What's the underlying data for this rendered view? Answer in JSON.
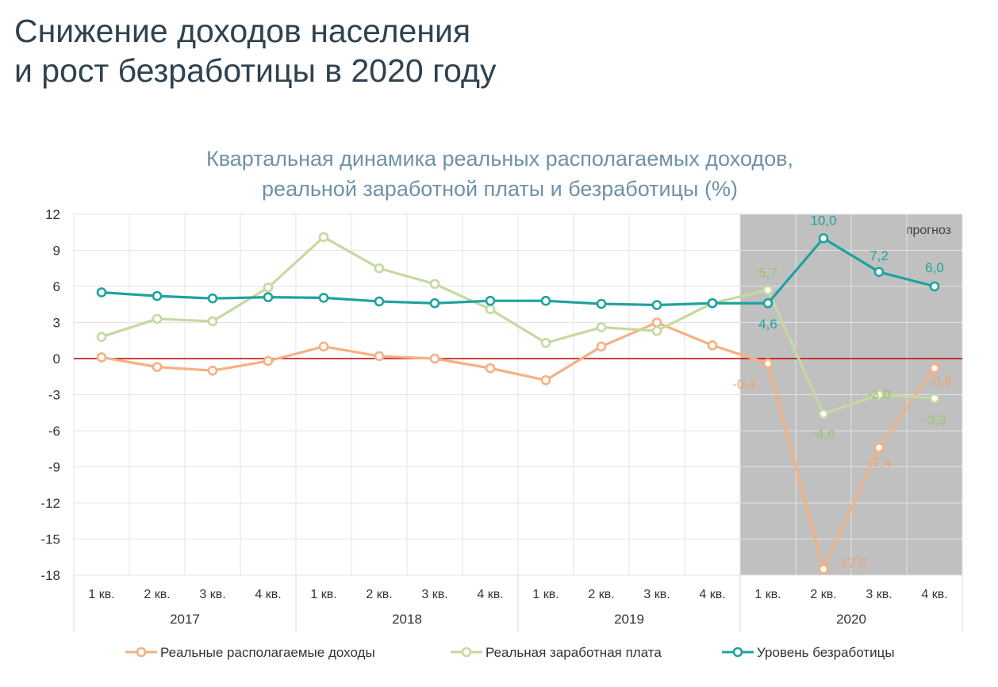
{
  "header": {
    "title_line1": "Снижение доходов населения",
    "title_line2": "и рост безработицы в 2020 году"
  },
  "chart_data": {
    "type": "line",
    "title_line1": "Квартальная динамика реальных располагаемых доходов,",
    "title_line2": "реальной заработной платы и безработицы (%)",
    "quarters": [
      "1 кв.",
      "2 кв.",
      "3 кв.",
      "4 кв.",
      "1 кв.",
      "2 кв.",
      "3 кв.",
      "4 кв.",
      "1 кв.",
      "2 кв.",
      "3 кв.",
      "4 кв.",
      "1 кв.",
      "2 кв.",
      "3 кв.",
      "4 кв."
    ],
    "years": [
      "2017",
      "2018",
      "2019",
      "2020"
    ],
    "ylim": [
      -18,
      12
    ],
    "yticks": [
      12,
      9,
      6,
      3,
      0,
      -3,
      -6,
      -9,
      -12,
      -15,
      -18
    ],
    "grid": true,
    "zero_line_color": "#c00000",
    "forecast": {
      "label": "прогноз",
      "from_index": 12,
      "to_index": 15,
      "color": "#c0c0c0"
    },
    "legend_position": "bottom",
    "series": [
      {
        "name": "Реальные располагаемые доходы",
        "color": "#f4b183",
        "label_color": "#f4a26b",
        "values": [
          0.1,
          -0.7,
          -1.0,
          -0.2,
          1.0,
          0.2,
          0.0,
          -0.8,
          -1.8,
          1.0,
          3.0,
          1.1,
          -0.4,
          -17.5,
          -7.4,
          -0.8
        ],
        "labels": {
          "12": "-0,4",
          "13": "-17,5",
          "14": "-7,4",
          "15": "-0,8"
        }
      },
      {
        "name": "Реальная заработная плата",
        "color": "#c5d9a1",
        "label_color": "#9cc26a",
        "values": [
          1.8,
          3.3,
          3.1,
          5.9,
          10.1,
          7.5,
          6.2,
          4.1,
          1.3,
          2.6,
          2.3,
          4.6,
          5.7,
          -4.6,
          -3.0,
          -3.3
        ],
        "labels": {
          "12": "5,7",
          "13": "-4,6",
          "14": "-3,0",
          "15": "-3,3"
        }
      },
      {
        "name": "Уровень безработицы",
        "color": "#1fa29f",
        "label_color": "#1fa29f",
        "values": [
          5.5,
          5.2,
          5.0,
          5.1,
          5.05,
          4.75,
          4.6,
          4.8,
          4.8,
          4.55,
          4.45,
          4.6,
          4.6,
          10.0,
          7.2,
          6.0
        ],
        "labels": {
          "12": "4,6",
          "13": "10,0",
          "14": "7,2",
          "15": "6,0"
        }
      }
    ]
  }
}
